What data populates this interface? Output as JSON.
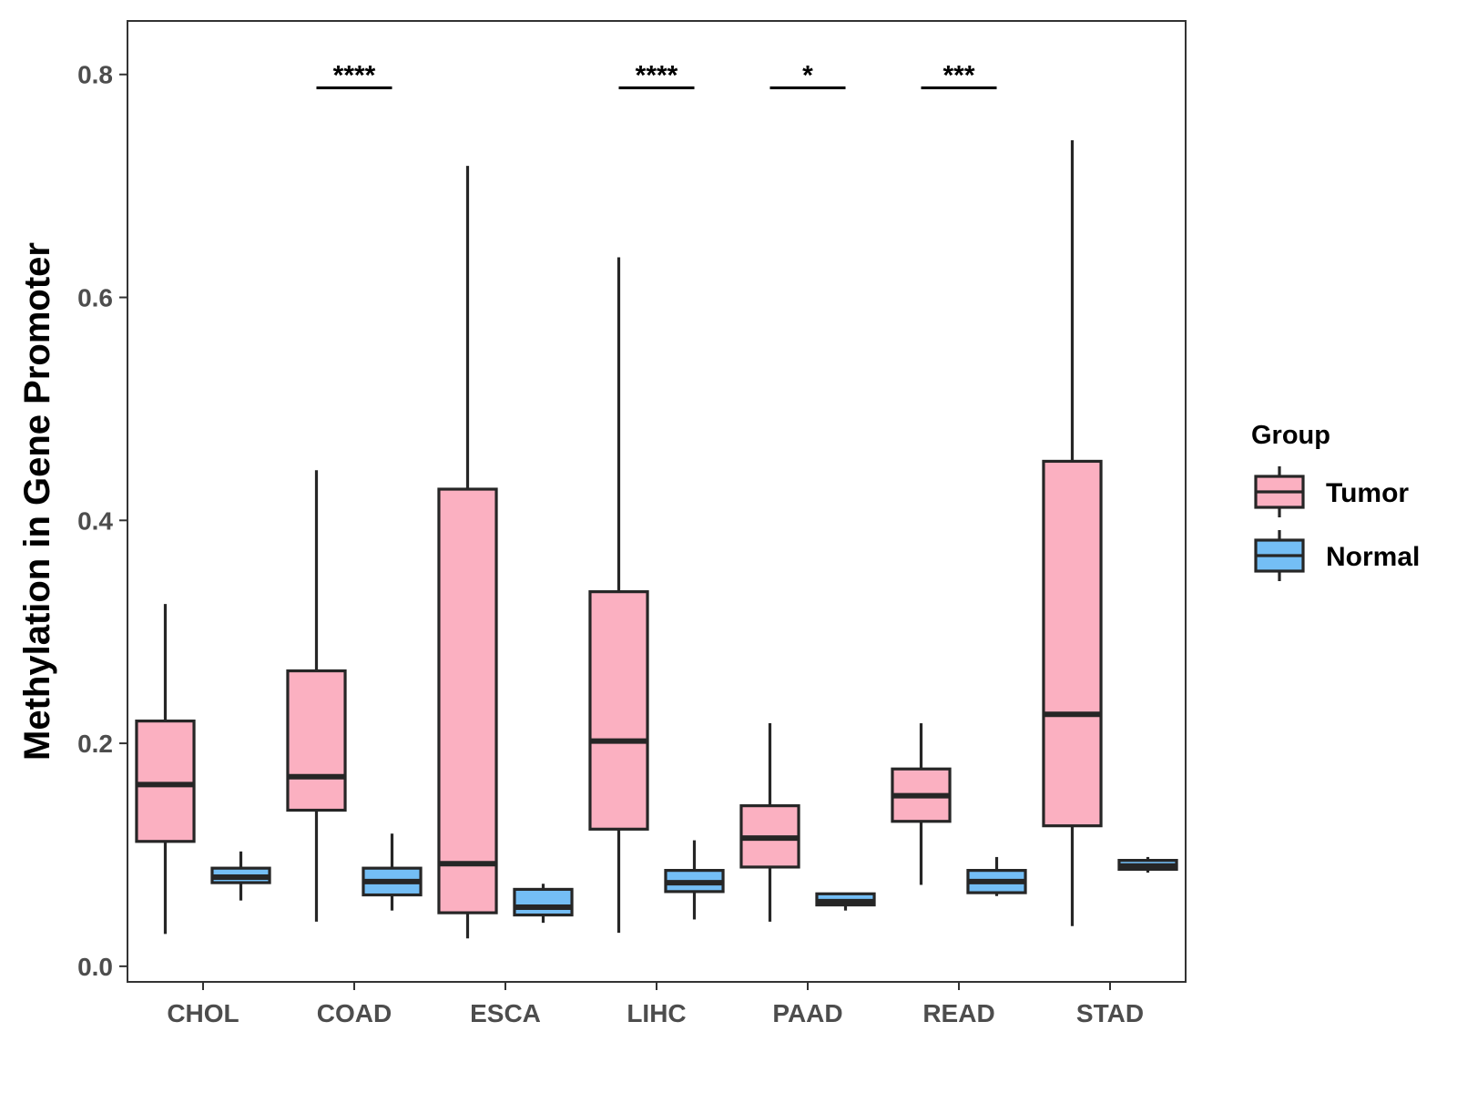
{
  "chart_data": {
    "type": "boxplot",
    "title": "",
    "xlabel": "",
    "ylabel": "Methylation in Gene Promoter",
    "ylim": [
      -0.014,
      0.848
    ],
    "yticks": [
      0.0,
      0.2,
      0.4,
      0.6,
      0.8
    ],
    "ytick_labels": [
      "0.0",
      "0.2",
      "0.4",
      "0.6",
      "0.8"
    ],
    "categories": [
      "CHOL",
      "COAD",
      "ESCA",
      "LIHC",
      "PAAD",
      "READ",
      "STAD"
    ],
    "legend": {
      "title": "Group",
      "position": "right",
      "entries": [
        {
          "name": "Tumor",
          "color": "#FBB0C1"
        },
        {
          "name": "Normal",
          "color": "#74BEF5"
        }
      ]
    },
    "series": [
      {
        "name": "Tumor",
        "color": "#FBB0C1",
        "boxes": [
          {
            "category": "CHOL",
            "whisker_low": 0.029,
            "q1": 0.112,
            "median": 0.163,
            "q3": 0.22,
            "whisker_high": 0.325
          },
          {
            "category": "COAD",
            "whisker_low": 0.04,
            "q1": 0.14,
            "median": 0.17,
            "q3": 0.265,
            "whisker_high": 0.445
          },
          {
            "category": "ESCA",
            "whisker_low": 0.025,
            "q1": 0.048,
            "median": 0.092,
            "q3": 0.428,
            "whisker_high": 0.718
          },
          {
            "category": "LIHC",
            "whisker_low": 0.03,
            "q1": 0.123,
            "median": 0.202,
            "q3": 0.336,
            "whisker_high": 0.636
          },
          {
            "category": "PAAD",
            "whisker_low": 0.04,
            "q1": 0.089,
            "median": 0.115,
            "q3": 0.144,
            "whisker_high": 0.218
          },
          {
            "category": "READ",
            "whisker_low": 0.073,
            "q1": 0.13,
            "median": 0.153,
            "q3": 0.177,
            "whisker_high": 0.218
          },
          {
            "category": "STAD",
            "whisker_low": 0.036,
            "q1": 0.126,
            "median": 0.226,
            "q3": 0.453,
            "whisker_high": 0.741
          }
        ]
      },
      {
        "name": "Normal",
        "color": "#74BEF5",
        "boxes": [
          {
            "category": "CHOL",
            "whisker_low": 0.059,
            "q1": 0.075,
            "median": 0.08,
            "q3": 0.088,
            "whisker_high": 0.103
          },
          {
            "category": "COAD",
            "whisker_low": 0.05,
            "q1": 0.064,
            "median": 0.076,
            "q3": 0.088,
            "whisker_high": 0.119
          },
          {
            "category": "ESCA",
            "whisker_low": 0.039,
            "q1": 0.046,
            "median": 0.053,
            "q3": 0.069,
            "whisker_high": 0.074
          },
          {
            "category": "LIHC",
            "whisker_low": 0.042,
            "q1": 0.067,
            "median": 0.075,
            "q3": 0.086,
            "whisker_high": 0.113
          },
          {
            "category": "PAAD",
            "whisker_low": 0.05,
            "q1": 0.055,
            "median": 0.058,
            "q3": 0.065,
            "whisker_high": 0.066
          },
          {
            "category": "READ",
            "whisker_low": 0.063,
            "q1": 0.066,
            "median": 0.076,
            "q3": 0.086,
            "whisker_high": 0.098
          },
          {
            "category": "STAD",
            "whisker_low": 0.084,
            "q1": 0.087,
            "median": 0.09,
            "q3": 0.095,
            "whisker_high": 0.098
          }
        ]
      }
    ],
    "significance": [
      {
        "category": "COAD",
        "label": "****",
        "y": 0.788
      },
      {
        "category": "LIHC",
        "label": "****",
        "y": 0.788
      },
      {
        "category": "PAAD",
        "label": "*",
        "y": 0.788
      },
      {
        "category": "READ",
        "label": "***",
        "y": 0.788
      }
    ]
  }
}
